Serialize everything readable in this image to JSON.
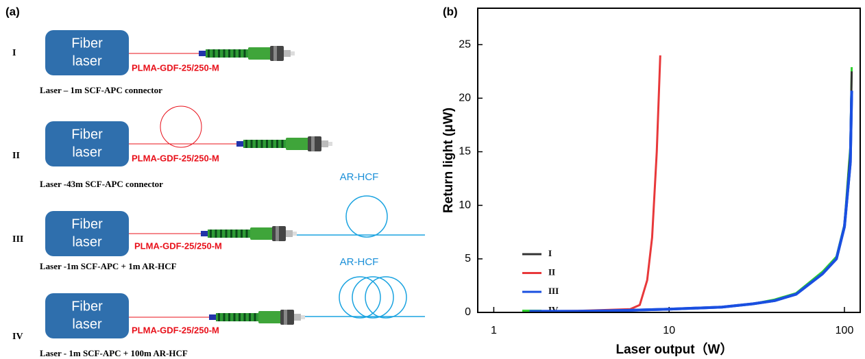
{
  "diagram": {
    "panel_label": "(a)",
    "setups": [
      {
        "roman": "I",
        "box_lines": [
          "Fiber",
          "laser"
        ],
        "fiber_label": "PLMA-GDF-25/250-M",
        "caption": "Laser – 1m SCF-APC connector"
      },
      {
        "roman": "II",
        "box_lines": [
          "Fiber",
          "laser"
        ],
        "fiber_label": "PLMA-GDF-25/250-M",
        "caption": "Laser -43m SCF-APC connector"
      },
      {
        "roman": "III",
        "box_lines": [
          "Fiber",
          "laser"
        ],
        "fiber_label": "PLMA-GDF-25/250-M",
        "caption": "Laser -1m SCF-APC + 1m AR-HCF",
        "hcf_label": "AR-HCF"
      },
      {
        "roman": "IV",
        "box_lines": [
          "Fiber",
          "laser"
        ],
        "fiber_label": "PLMA-GDF-25/250-M",
        "caption": "Laser - 1m SCF-APC + 100m AR-HCF",
        "hcf_label": "AR-HCF"
      }
    ]
  },
  "chart_data": {
    "type": "line",
    "panel_label": "(b)",
    "x_label": "Laser output（W）",
    "y_label": "Return light (μW)",
    "xscale": "log",
    "xlim": [
      0.81,
      123
    ],
    "xticks": [
      1,
      10,
      100
    ],
    "ylim": [
      0,
      28.4
    ],
    "yticks": [
      0,
      5,
      10,
      15,
      20,
      25
    ],
    "series": [
      {
        "name": "IV",
        "color": "#2fd12f",
        "x": [
          1.6,
          3,
          6,
          10,
          20,
          30,
          40,
          53,
          75,
          90,
          100,
          108,
          110
        ],
        "values": [
          0.1,
          0.1,
          0.2,
          0.3,
          0.5,
          0.8,
          1.2,
          1.8,
          3.8,
          5.2,
          8.2,
          15.5,
          22.9
        ]
      },
      {
        "name": "I",
        "color": "#333333",
        "x": [
          1.6,
          3,
          6,
          10,
          20,
          30,
          40,
          53,
          75,
          90,
          100,
          108,
          110
        ],
        "values": [
          0.1,
          0.1,
          0.2,
          0.3,
          0.5,
          0.8,
          1.1,
          1.7,
          3.6,
          5,
          8,
          15,
          22.5
        ]
      },
      {
        "name": "II",
        "color": "#e8383a",
        "x": [
          1.6,
          3,
          6,
          6.8,
          7.5,
          8,
          8.5,
          8.9
        ],
        "values": [
          0.1,
          0.15,
          0.3,
          0.7,
          3,
          7,
          15,
          24
        ]
      },
      {
        "name": "III",
        "color": "#1a4fe0",
        "x": [
          1.6,
          3,
          6,
          10,
          20,
          30,
          40,
          53,
          75,
          90,
          100,
          108,
          110
        ],
        "values": [
          0.1,
          0.1,
          0.2,
          0.3,
          0.5,
          0.8,
          1.1,
          1.7,
          3.6,
          5,
          8,
          14,
          20.7
        ]
      }
    ],
    "legend_order": [
      "I",
      "II",
      "III",
      "IV"
    ]
  }
}
